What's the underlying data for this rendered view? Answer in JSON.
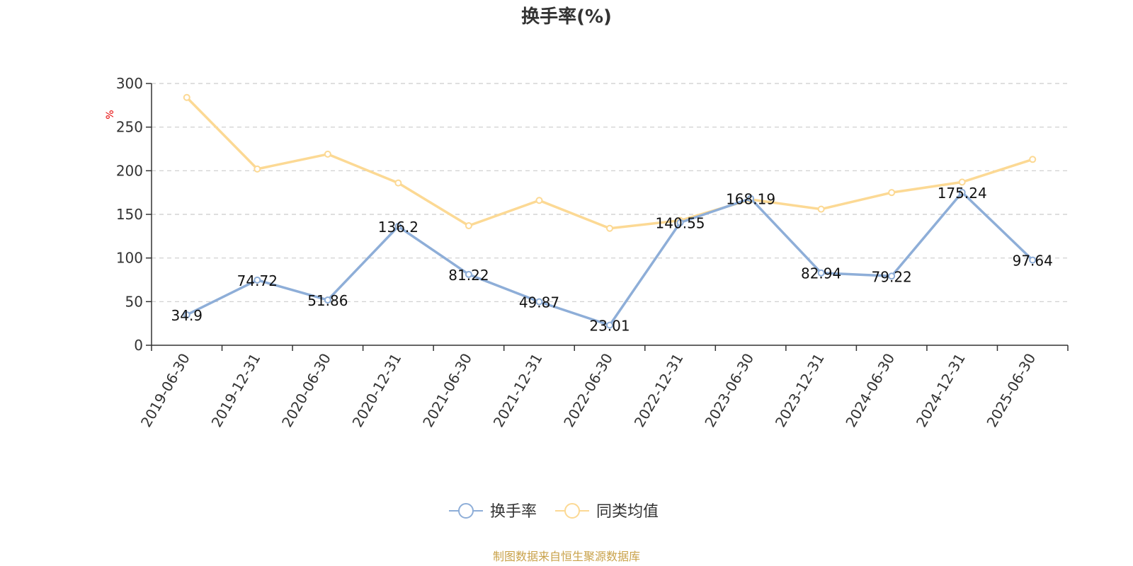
{
  "chart_data": {
    "type": "line",
    "title": "换手率(%)",
    "ylabel": "%",
    "ylim": [
      0,
      300
    ],
    "yticks": [
      0,
      50,
      100,
      150,
      200,
      250,
      300
    ],
    "grid": true,
    "legend_position": "bottom-center",
    "categories": [
      "2019-06-30",
      "2019-12-31",
      "2020-06-30",
      "2020-12-31",
      "2021-06-30",
      "2021-12-31",
      "2022-06-30",
      "2022-12-31",
      "2023-06-30",
      "2023-12-31",
      "2024-06-30",
      "2024-12-31",
      "2025-06-30"
    ],
    "series": [
      {
        "name": "换手率",
        "color": "#8eaed8",
        "values": [
          34.9,
          74.72,
          51.86,
          136.2,
          81.22,
          49.87,
          23.01,
          140.55,
          168.19,
          82.94,
          79.22,
          175.24,
          97.64
        ],
        "labels": [
          "34.9",
          "74.72",
          "51.86",
          "136.2",
          "81.22",
          "49.87",
          "23.01",
          "140.55",
          "168.19",
          "82.94",
          "79.22",
          "175.24",
          "97.64"
        ]
      },
      {
        "name": "同类均值",
        "color": "#fcd994",
        "values": [
          284,
          202,
          219,
          186,
          137,
          166,
          134,
          143,
          167,
          156,
          175,
          187,
          213
        ]
      }
    ]
  },
  "footer": {
    "source": "制图数据来自恒生聚源数据库"
  }
}
